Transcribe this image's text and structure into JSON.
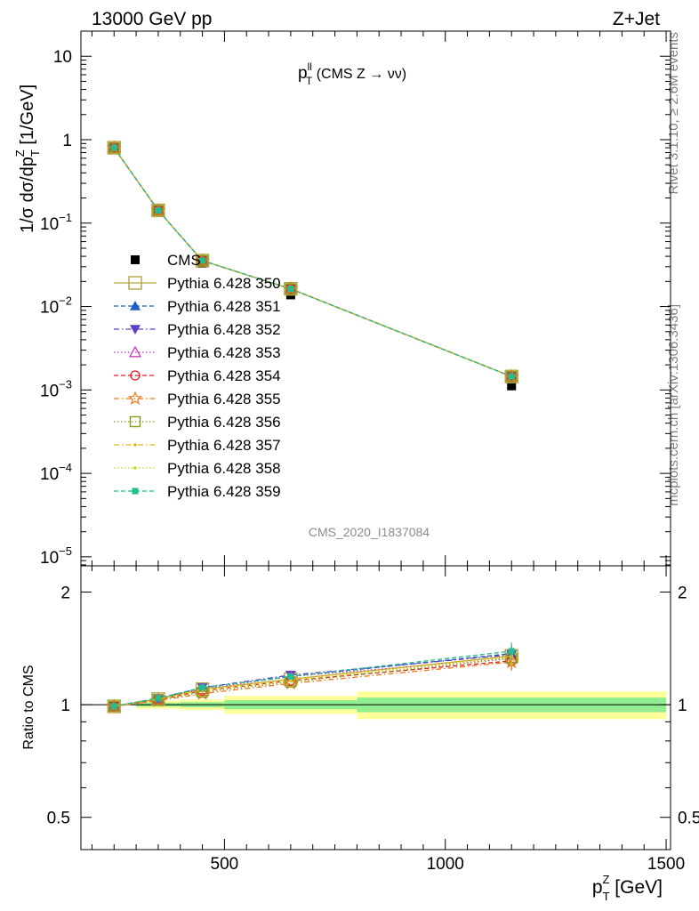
{
  "header": {
    "left": "13000 GeV pp",
    "right": "Z+Jet"
  },
  "side_text": {
    "rivet": "Rivet 3.1.10, ≥ 2.6M events",
    "mcplots": "mcplots.cern.ch [arXiv:1306.3436]"
  },
  "watermark": "CMS_2020_I1837084",
  "chart_data": [
    {
      "type": "line",
      "panel": "main",
      "title_main": "p",
      "title_sup": "ll",
      "title_sub": "T",
      "title_rest": " (CMS Z → νν)",
      "ylabel": "1/σ dσ/dp_T^Z [1/GeV]",
      "ylabel_parts": {
        "a": "1/σ dσ/dp",
        "sub": "T",
        "sup": "Z",
        "b": " [1/GeV]"
      },
      "yscale": "log",
      "ylim": [
        7.8e-06,
        20
      ],
      "xlim": [
        175,
        1510
      ],
      "yticks": [
        {
          "base": "10",
          "exp": "",
          "value": 10
        },
        {
          "base": "1",
          "exp": "",
          "value": 1
        },
        {
          "base": "10",
          "exp": "−1",
          "value": 0.1
        },
        {
          "base": "10",
          "exp": "−2",
          "value": 0.01
        },
        {
          "base": "10",
          "exp": "−3",
          "value": 0.001
        },
        {
          "base": "10",
          "exp": "−4",
          "value": 0.0001
        },
        {
          "base": "10",
          "exp": "−5",
          "value": 1e-05
        }
      ],
      "x": [
        250,
        350,
        450,
        650,
        1150
      ],
      "data_series": {
        "name": "CMS",
        "values": [
          0.79,
          0.14,
          0.033,
          0.0138,
          0.00112
        ]
      },
      "mc_values": [
        0.8,
        0.142,
        0.0355,
        0.0163,
        0.00145
      ],
      "legend_position": "middle-left",
      "series": [
        {
          "name": "Pythia 6.428 350",
          "color": "#b5a642",
          "marker": "open-square-large",
          "dash": "solid"
        },
        {
          "name": "Pythia 6.428 351",
          "color": "#1f5fbf",
          "marker": "filled-triangle-up",
          "dash": "dashed"
        },
        {
          "name": "Pythia 6.428 352",
          "color": "#5b3fc4",
          "marker": "filled-triangle-down",
          "dash": "dashdot"
        },
        {
          "name": "Pythia 6.428 353",
          "color": "#c23fb5",
          "marker": "open-triangle-up",
          "dash": "dotted"
        },
        {
          "name": "Pythia 6.428 354",
          "color": "#e31a1c",
          "marker": "open-circle",
          "dash": "dashed"
        },
        {
          "name": "Pythia 6.428 355",
          "color": "#f07a1a",
          "marker": "open-star",
          "dash": "dashdot"
        },
        {
          "name": "Pythia 6.428 356",
          "color": "#8a9a1b",
          "marker": "open-square",
          "dash": "dotted"
        },
        {
          "name": "Pythia 6.428 357",
          "color": "#e0b814",
          "marker": "small-dot",
          "dash": "dashdot"
        },
        {
          "name": "Pythia 6.428 358",
          "color": "#c9d616",
          "marker": "small-dot",
          "dash": "dotted"
        },
        {
          "name": "Pythia 6.428 359",
          "color": "#1fbf8f",
          "marker": "filled-square",
          "dash": "dashed"
        }
      ]
    },
    {
      "type": "line",
      "panel": "ratio",
      "ylabel": "Ratio to CMS",
      "yscale": "log",
      "ylim": [
        0.41,
        2.35
      ],
      "xlim": [
        175,
        1510
      ],
      "yticks": [
        {
          "label": "0.5",
          "value": 0.5
        },
        {
          "label": "1",
          "value": 1
        },
        {
          "label": "2",
          "value": 2
        }
      ],
      "xticks": [
        {
          "label": "500",
          "value": 500
        },
        {
          "label": "1000",
          "value": 1000
        },
        {
          "label": "1500",
          "value": 1500
        }
      ],
      "xlabel_parts": {
        "a": "p",
        "sub": "T",
        "sup": "Z",
        "b": " [GeV]"
      },
      "bands": [
        {
          "x0": 300,
          "x1": 400,
          "stat": 0.012,
          "tot": 0.025
        },
        {
          "x0": 400,
          "x1": 500,
          "stat": 0.016,
          "tot": 0.032
        },
        {
          "x0": 500,
          "x1": 800,
          "stat": 0.028,
          "tot": 0.055
        },
        {
          "x0": 800,
          "x1": 1500,
          "stat": 0.045,
          "tot": 0.085
        }
      ],
      "band_colors": {
        "stat": "#90ee90",
        "tot": "#ffff99"
      },
      "ratio_series": [
        [
          0.99,
          1.035,
          1.1,
          1.17,
          1.35
        ],
        [
          0.99,
          1.04,
          1.11,
          1.19,
          1.37
        ],
        [
          0.99,
          1.04,
          1.11,
          1.2,
          1.36
        ],
        [
          0.99,
          1.035,
          1.1,
          1.19,
          1.33
        ],
        [
          0.99,
          1.03,
          1.09,
          1.16,
          1.31
        ],
        [
          0.99,
          1.025,
          1.07,
          1.14,
          1.3
        ],
        [
          0.99,
          1.03,
          1.08,
          1.15,
          1.33
        ],
        [
          0.99,
          1.035,
          1.1,
          1.17,
          1.35
        ],
        [
          0.99,
          1.035,
          1.09,
          1.16,
          1.34
        ],
        [
          0.99,
          1.04,
          1.11,
          1.19,
          1.39
        ]
      ]
    }
  ]
}
